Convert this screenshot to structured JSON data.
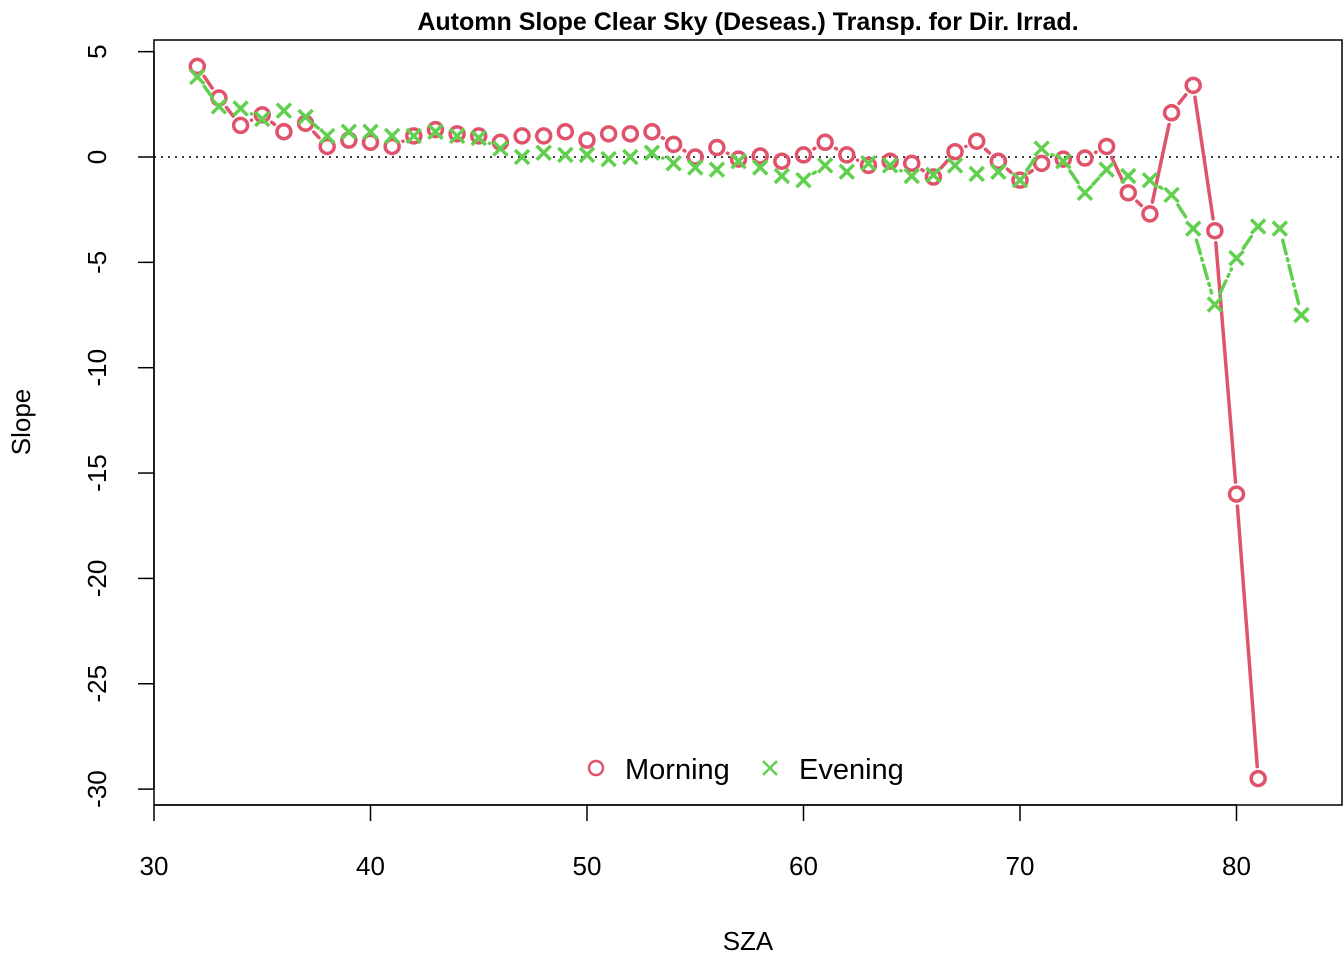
{
  "chart_data": {
    "type": "scatter",
    "title": "Automn Slope Clear Sky (Deseas.) Transp. for Dir. Irrad.",
    "xlabel": "SZA",
    "ylabel": "Slope",
    "xlim": [
      30,
      84
    ],
    "ylim": [
      -31,
      5
    ],
    "xticks": [
      30,
      40,
      50,
      60,
      70,
      80
    ],
    "yticks": [
      5,
      0,
      -5,
      -10,
      -15,
      -20,
      -25,
      -30
    ],
    "reference_line": {
      "y": 0,
      "style": "dotted"
    },
    "legend": {
      "placement": "bottom-center"
    },
    "series": [
      {
        "name": "Morning",
        "marker": "circle",
        "color": "#DF536B",
        "x": [
          32,
          33,
          34,
          35,
          36,
          37,
          38,
          39,
          40,
          41,
          42,
          43,
          44,
          45,
          46,
          47,
          48,
          49,
          50,
          51,
          52,
          53,
          54,
          55,
          56,
          57,
          58,
          59,
          60,
          61,
          62,
          63,
          64,
          65,
          66,
          67,
          68,
          69,
          70,
          71,
          72,
          73,
          74,
          75,
          76,
          77,
          78,
          79,
          80,
          81
        ],
        "y": [
          4.3,
          2.8,
          1.5,
          2.0,
          1.2,
          1.6,
          0.5,
          0.8,
          0.7,
          0.5,
          1.0,
          1.3,
          1.1,
          1.0,
          0.7,
          1.0,
          1.0,
          1.2,
          0.8,
          1.1,
          1.1,
          1.2,
          0.6,
          0.0,
          0.45,
          -0.1,
          0.05,
          -0.2,
          0.1,
          0.7,
          0.1,
          -0.4,
          -0.2,
          -0.3,
          -0.95,
          0.25,
          0.75,
          -0.2,
          -1.1,
          -0.3,
          -0.1,
          -0.05,
          0.5,
          -1.7,
          -2.7,
          2.1,
          3.4,
          -3.5,
          -16.0,
          -29.5
        ]
      },
      {
        "name": "Evening",
        "marker": "x",
        "color": "#61D04F",
        "x": [
          32,
          33,
          34,
          35,
          36,
          37,
          38,
          39,
          40,
          41,
          42,
          43,
          44,
          45,
          46,
          47,
          48,
          49,
          50,
          51,
          52,
          53,
          54,
          55,
          56,
          57,
          58,
          59,
          60,
          61,
          62,
          63,
          64,
          65,
          66,
          67,
          68,
          69,
          70,
          71,
          72,
          73,
          74,
          75,
          76,
          77,
          78,
          79,
          80,
          81,
          82,
          83
        ],
        "y": [
          3.8,
          2.4,
          2.3,
          1.8,
          2.2,
          1.9,
          1.0,
          1.2,
          1.2,
          1.0,
          1.0,
          1.2,
          1.0,
          0.9,
          0.4,
          0.0,
          0.2,
          0.1,
          0.1,
          -0.1,
          0.0,
          0.2,
          -0.3,
          -0.5,
          -0.6,
          -0.2,
          -0.5,
          -0.9,
          -1.1,
          -0.4,
          -0.7,
          -0.3,
          -0.4,
          -0.9,
          -0.85,
          -0.4,
          -0.8,
          -0.7,
          -1.1,
          0.4,
          -0.2,
          -1.7,
          -0.6,
          -0.9,
          -1.1,
          -1.8,
          -3.4,
          -7.0,
          -4.8,
          -3.3,
          -3.4,
          -7.5
        ]
      }
    ]
  }
}
